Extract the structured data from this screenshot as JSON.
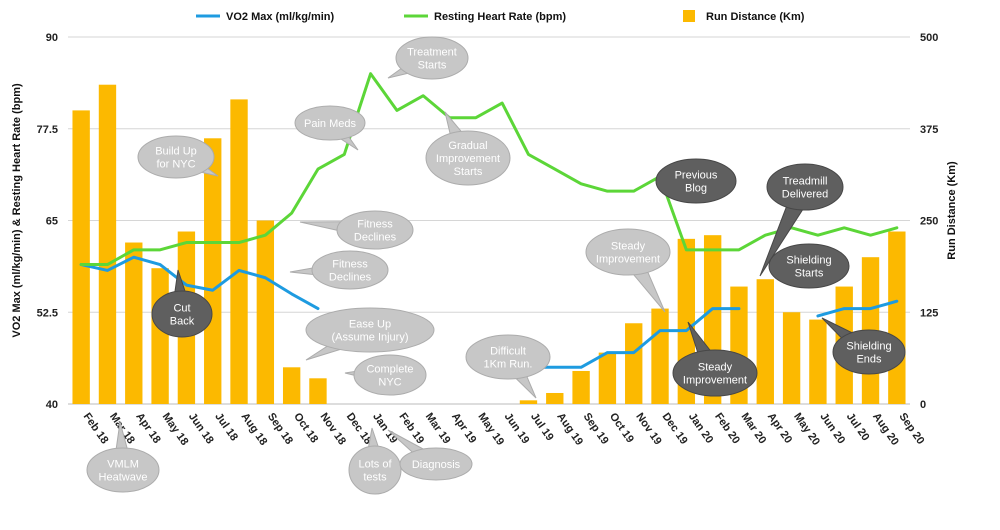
{
  "chart_data": {
    "type": "bar+line",
    "categories": [
      "Feb 18",
      "Mar 18",
      "Apr 18",
      "May 18",
      "Jun 18",
      "Jul 18",
      "Aug 18",
      "Sep 18",
      "Oct 18",
      "Nov 18",
      "Dec 18",
      "Jan 19",
      "Feb 19",
      "Mar 19",
      "Apr 19",
      "May 19",
      "Jun 19",
      "Jul 19",
      "Aug 19",
      "Sep 19",
      "Oct 19",
      "Nov 19",
      "Dec 19",
      "Jan 20",
      "Feb 20",
      "Mar 20",
      "Apr 20",
      "May 20",
      "Jun 20",
      "Jul 20",
      "Aug 20",
      "Sep 20"
    ],
    "y_left": {
      "label": "VO2 Max (ml/kg/min) & Resting Heart Rate (bpm)",
      "min": 40,
      "max": 90,
      "ticks": [
        "40",
        "52.5",
        "65",
        "77.5",
        "90"
      ]
    },
    "y_right": {
      "label": "Run Distance (Km)",
      "min": 0,
      "max": 500,
      "ticks": [
        "0",
        "125",
        "250",
        "375",
        "500"
      ]
    },
    "grid": true,
    "legend_position": "top",
    "series": [
      {
        "name": "Run Distance (Km)",
        "type": "bar",
        "axis": "right",
        "color": "#FCB900",
        "values": [
          400,
          435,
          220,
          185,
          235,
          362,
          415,
          250,
          50,
          35,
          null,
          null,
          null,
          null,
          null,
          null,
          null,
          5,
          15,
          45,
          70,
          110,
          130,
          225,
          230,
          160,
          170,
          125,
          115,
          160,
          200,
          235
        ]
      },
      {
        "name": "VO2 Max (ml/kg/min)",
        "type": "line",
        "axis": "left",
        "color": "#1E9BE0",
        "values": [
          59,
          58.2,
          60,
          59,
          56.2,
          55.5,
          58.2,
          57.2,
          55,
          53,
          null,
          null,
          null,
          null,
          null,
          null,
          null,
          45,
          45,
          45,
          47,
          47,
          50,
          50,
          53,
          53,
          null,
          null,
          52,
          53,
          53,
          54
        ]
      },
      {
        "name": "Resting Heart Rate (bpm)",
        "type": "line",
        "axis": "left",
        "color": "#5CD638",
        "values": [
          59,
          59,
          61,
          61,
          62,
          62,
          62,
          63,
          66,
          72,
          74,
          85,
          80,
          82,
          79,
          79,
          81,
          74,
          72,
          70,
          69,
          69,
          71,
          61,
          61,
          61,
          63,
          64,
          63,
          64,
          63,
          64
        ]
      }
    ],
    "annotations": [
      {
        "text": [
          "Build Up",
          "for NYC"
        ],
        "style": "light"
      },
      {
        "text": [
          "Cut",
          "Back"
        ],
        "style": "dark"
      },
      {
        "text": [
          "Pain Meds"
        ],
        "style": "light"
      },
      {
        "text": [
          "Treatment",
          "Starts"
        ],
        "style": "light"
      },
      {
        "text": [
          "Gradual",
          "Improvement",
          "Starts"
        ],
        "style": "light"
      },
      {
        "text": [
          "Fitness",
          "Declines"
        ],
        "style": "light"
      },
      {
        "text": [
          "Fitness",
          "Declines"
        ],
        "style": "light"
      },
      {
        "text": [
          "Ease Up",
          "(Assume Injury)"
        ],
        "style": "light"
      },
      {
        "text": [
          "Complete",
          "NYC"
        ],
        "style": "light"
      },
      {
        "text": [
          "VMLM",
          "Heatwave"
        ],
        "style": "light"
      },
      {
        "text": [
          "Lots of",
          "tests"
        ],
        "style": "light"
      },
      {
        "text": [
          "Diagnosis"
        ],
        "style": "light"
      },
      {
        "text": [
          "Difficult",
          "1Km Run."
        ],
        "style": "light"
      },
      {
        "text": [
          "Steady",
          "Improvement"
        ],
        "style": "light"
      },
      {
        "text": [
          "Previous",
          "Blog"
        ],
        "style": "dark"
      },
      {
        "text": [
          "Treadmill",
          "Delivered"
        ],
        "style": "dark"
      },
      {
        "text": [
          "Shielding",
          "Starts"
        ],
        "style": "dark"
      },
      {
        "text": [
          "Steady",
          "Improvement"
        ],
        "style": "dark"
      },
      {
        "text": [
          "Shielding",
          "Ends"
        ],
        "style": "dark"
      }
    ]
  }
}
